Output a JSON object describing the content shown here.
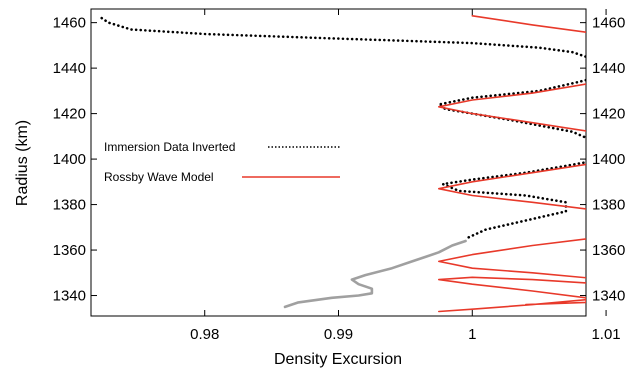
{
  "chart_data": {
    "type": "line",
    "xlabel": "Density Excursion",
    "ylabel": "Radius (km)",
    "xlim": [
      0.9715,
      1.0085
    ],
    "ylim": [
      1331,
      1466
    ],
    "x_ticks": [
      0.98,
      0.99,
      1,
      1.01
    ],
    "x_tick_labels": [
      "0.98",
      "0.99",
      "1",
      "1.01"
    ],
    "y_ticks": [
      1340,
      1360,
      1380,
      1400,
      1420,
      1440,
      1460
    ],
    "y_tick_labels": [
      "1340",
      "1360",
      "1380",
      "1400",
      "1420",
      "1440",
      "1460"
    ],
    "grid": false,
    "legend_position": "left",
    "series": [
      {
        "name": "Immersion Data Inverted",
        "style": "dotted",
        "color": "#000000",
        "x": [
          0.9723,
          0.9728,
          0.9745,
          0.98,
          0.985,
          0.99,
          0.995,
          1.0,
          1.005,
          1.0075,
          1.009,
          1.01,
          1.0105,
          1.01,
          1.008,
          1.005,
          1.0,
          0.9975,
          0.998,
          1.003,
          1.0075,
          1.0098,
          1.0098,
          1.007,
          1.004,
          1.0,
          0.9978,
          0.999,
          1.004,
          1.007,
          1.007,
          1.004,
          1.001,
          0.9995
        ],
        "y": [
          1462,
          1460,
          1457,
          1455,
          1454,
          1453,
          1452,
          1451,
          1449,
          1447,
          1444,
          1441,
          1439,
          1437,
          1434,
          1430,
          1427,
          1424,
          1422,
          1417,
          1412,
          1406,
          1400,
          1397,
          1394,
          1391,
          1389,
          1386,
          1384,
          1381,
          1377,
          1373,
          1369,
          1365
        ]
      },
      {
        "name": "",
        "style": "solid",
        "color": "#a0a0a0",
        "x": [
          0.9995,
          0.9985,
          0.9975,
          0.9965,
          0.9955,
          0.994,
          0.992,
          0.991,
          0.9915,
          0.9925,
          0.9925,
          0.9915,
          0.9895,
          0.987,
          0.986
        ],
        "y": [
          1364,
          1362,
          1359,
          1357,
          1355,
          1352,
          1349,
          1347,
          1345,
          1343,
          1341,
          1340,
          1339,
          1337,
          1335
        ]
      },
      {
        "name": "Rossby Wave Model",
        "style": "solid",
        "color": "#e8392a",
        "x": [
          1.0,
          1.0045,
          1.0095,
          1.014,
          1.014,
          1.0095,
          1.0045,
          1.0,
          0.9975,
          1.0,
          1.0045,
          1.01,
          1.012,
          1.01,
          1.0045,
          1.0,
          0.9975,
          1.0,
          1.0045,
          1.01,
          1.012,
          1.01,
          1.0045,
          1.0,
          0.9975,
          1.0,
          1.0045,
          1.01,
          1.012,
          1.01,
          1.0045,
          1.0,
          0.9975,
          1.0,
          1.0045,
          1.01,
          1.012,
          1.01,
          1.0045,
          1.0,
          0.9975,
          1.0,
          1.0045,
          1.0085,
          1.0085,
          1.004
        ],
        "y": [
          1463,
          1459,
          1455,
          1448,
          1440,
          1434,
          1429,
          1426,
          1423,
          1420,
          1416,
          1411,
          1405,
          1399,
          1394,
          1390,
          1387,
          1384,
          1381,
          1377,
          1372,
          1366,
          1362,
          1358,
          1355,
          1352,
          1350,
          1347,
          1343,
          1339,
          1336,
          1334,
          1333,
          1334,
          1336,
          1339,
          1342,
          1345,
          1347,
          1348,
          1347,
          1345,
          1342,
          1339,
          1337,
          1336
        ]
      }
    ]
  }
}
